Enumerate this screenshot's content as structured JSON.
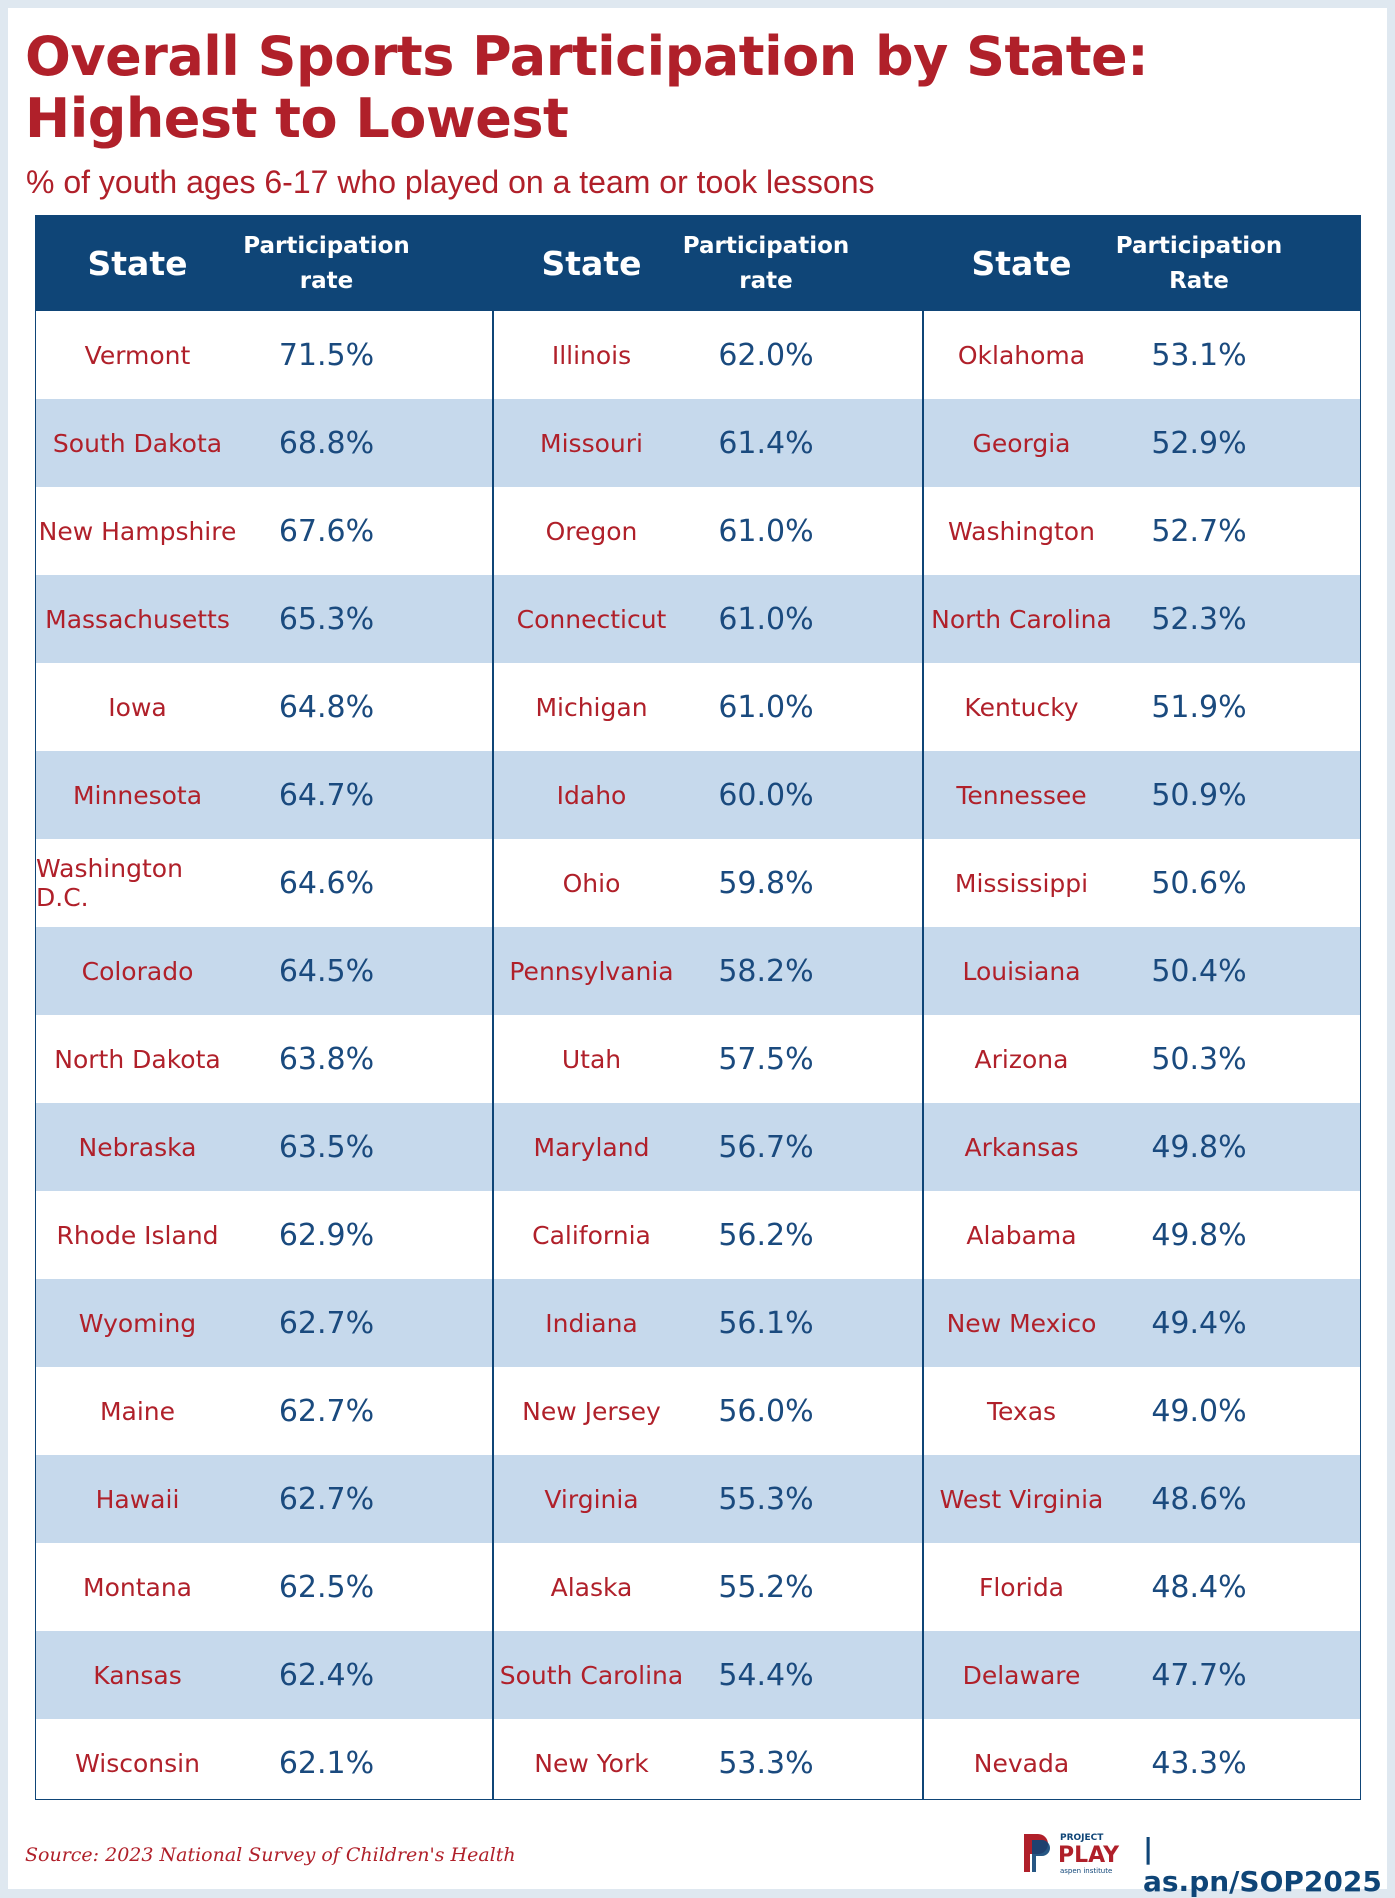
{
  "title": "Overall Sports Participation by State: Highest to Lowest",
  "subtitle": "% of youth ages 6-17 who played on a team or took lessons",
  "source": "Source: 2023 National Survey of Children's Health",
  "footer": {
    "logo_top": "PROJECT",
    "logo_main": "PLAY",
    "logo_sub": "aspen institute",
    "url": "| as.pn/SOP2025"
  },
  "headers": [
    {
      "state": "State",
      "rate": "Participation rate"
    },
    {
      "state": "State",
      "rate": "Participation rate"
    },
    {
      "state": "State",
      "rate": "Participation Rate"
    }
  ],
  "colors": {
    "accent_red": "#b0202a",
    "header_navy": "#0f4577",
    "value_blue": "#1a4a7e",
    "stripe": "#c6d9ec"
  },
  "chart_data": {
    "type": "table",
    "title": "Overall Sports Participation by State: Highest to Lowest",
    "subtitle": "% of youth ages 6-17 who played on a team or took lessons",
    "columns": [
      "State",
      "Participation rate"
    ],
    "rows": [
      [
        "Vermont",
        "71.5%"
      ],
      [
        "South Dakota",
        "68.8%"
      ],
      [
        "New Hampshire",
        "67.6%"
      ],
      [
        "Massachusetts",
        "65.3%"
      ],
      [
        "Iowa",
        "64.8%"
      ],
      [
        "Minnesota",
        "64.7%"
      ],
      [
        "Washington D.C.",
        "64.6%"
      ],
      [
        "Colorado",
        "64.5%"
      ],
      [
        "North Dakota",
        "63.8%"
      ],
      [
        "Nebraska",
        "63.5%"
      ],
      [
        "Rhode Island",
        "62.9%"
      ],
      [
        "Wyoming",
        "62.7%"
      ],
      [
        "Maine",
        "62.7%"
      ],
      [
        "Hawaii",
        "62.7%"
      ],
      [
        "Montana",
        "62.5%"
      ],
      [
        "Kansas",
        "62.4%"
      ],
      [
        "Wisconsin",
        "62.1%"
      ],
      [
        "Illinois",
        "62.0%"
      ],
      [
        "Missouri",
        "61.4%"
      ],
      [
        "Oregon",
        "61.0%"
      ],
      [
        "Connecticut",
        "61.0%"
      ],
      [
        "Michigan",
        "61.0%"
      ],
      [
        "Idaho",
        "60.0%"
      ],
      [
        "Ohio",
        "59.8%"
      ],
      [
        "Pennsylvania",
        "58.2%"
      ],
      [
        "Utah",
        "57.5%"
      ],
      [
        "Maryland",
        "56.7%"
      ],
      [
        "California",
        "56.2%"
      ],
      [
        "Indiana",
        "56.1%"
      ],
      [
        "New Jersey",
        "56.0%"
      ],
      [
        "Virginia",
        "55.3%"
      ],
      [
        "Alaska",
        "55.2%"
      ],
      [
        "South Carolina",
        "54.4%"
      ],
      [
        "New York",
        "53.3%"
      ],
      [
        "Oklahoma",
        "53.1%"
      ],
      [
        "Georgia",
        "52.9%"
      ],
      [
        "Washington",
        "52.7%"
      ],
      [
        "North Carolina",
        "52.3%"
      ],
      [
        "Kentucky",
        "51.9%"
      ],
      [
        "Tennessee",
        "50.9%"
      ],
      [
        "Mississippi",
        "50.6%"
      ],
      [
        "Louisiana",
        "50.4%"
      ],
      [
        "Arizona",
        "50.3%"
      ],
      [
        "Arkansas",
        "49.8%"
      ],
      [
        "Alabama",
        "49.8%"
      ],
      [
        "New Mexico",
        "49.4%"
      ],
      [
        "Texas",
        "49.0%"
      ],
      [
        "West Virginia",
        "48.6%"
      ],
      [
        "Florida",
        "48.4%"
      ],
      [
        "Delaware",
        "47.7%"
      ],
      [
        "Nevada",
        "43.3%"
      ]
    ]
  }
}
